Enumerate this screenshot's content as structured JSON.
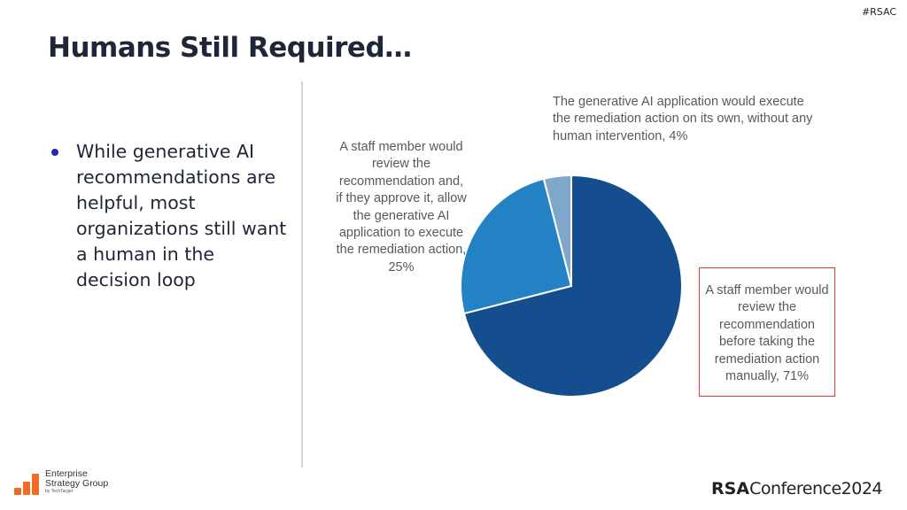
{
  "header": {
    "hashtag": "#RSAC",
    "title": "Humans Still Required…"
  },
  "bullets": [
    "While generative AI recommendations are helpful, most organizations still want a human in the decision loop"
  ],
  "colors": {
    "bullet": "#2323b8",
    "slice_71": "#154e8f",
    "slice_25": "#2382c4",
    "slice_4": "#7fa7c9",
    "highlight_border": "#e03a3a",
    "esg_orange": "#ef6b24"
  },
  "chart_data": {
    "type": "pie",
    "title": "",
    "categories": [
      "A staff member would review the recommendation before taking the remediation action manually",
      "A staff member would review the recommendation and, if they approve it, allow the generative AI application to execute the remediation action",
      "The generative AI application would execute the remediation action on its own, without any human intervention"
    ],
    "values": [
      71,
      25,
      4
    ],
    "unit": "%",
    "start_angle": "12 o'clock, clockwise",
    "highlighted": "A staff member would review the recommendation before taking the remediation action manually",
    "labels": {
      "slice_71": "A staff member would review the recommendation before taking the remediation action manually, 71%",
      "slice_25": "A staff member would review the recommendation and, if they approve it, allow the generative AI application to execute the remediation action, 25%",
      "slice_4": "The generative AI application would execute the remediation action on its own, without any human intervention, 4%"
    }
  },
  "footer": {
    "esg_logo": {
      "line1": "Enterprise",
      "line2": "Strategy Group",
      "line3": "by TechTarget"
    },
    "rsac_logo": {
      "bold": "RSA",
      "rest": "Conference",
      "year": "2024"
    }
  }
}
